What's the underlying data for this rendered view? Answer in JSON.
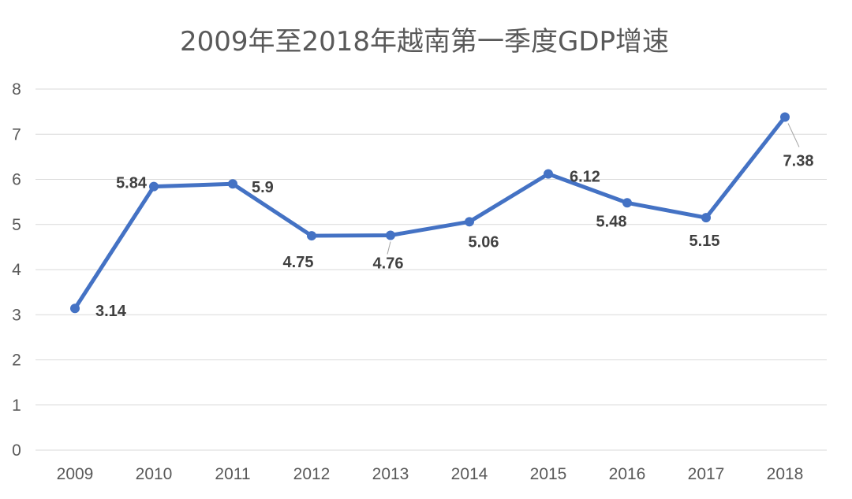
{
  "chart_data": {
    "type": "line",
    "title": "2009年至2018年越南第一季度GDP增速",
    "xlabel": "",
    "ylabel": "",
    "categories": [
      "2009",
      "2010",
      "2011",
      "2012",
      "2013",
      "2014",
      "2015",
      "2016",
      "2017",
      "2018"
    ],
    "series": [
      {
        "name": "越南第一季度GDP增速",
        "values": [
          3.14,
          5.84,
          5.9,
          4.75,
          4.76,
          5.06,
          6.12,
          5.48,
          5.15,
          7.38
        ],
        "labels": [
          "3.14",
          "5.84",
          "5.9",
          "4.75",
          "4.76",
          "5.06",
          "6.12",
          "5.48",
          "5.15",
          "7.38"
        ]
      }
    ],
    "ylim": [
      0,
      8
    ],
    "yticks": [
      "0",
      "1",
      "2",
      "3",
      "4",
      "5",
      "6",
      "7",
      "8"
    ],
    "grid": true,
    "legend": "none"
  },
  "colors": {
    "series": "#4472C4",
    "grid": "#d9d9d9",
    "text": "#595959"
  }
}
